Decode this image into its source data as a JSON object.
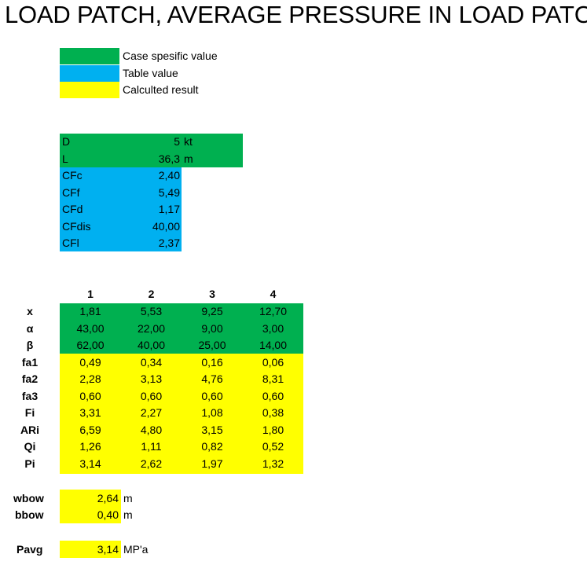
{
  "title": "LOAD PATCH, AVERAGE PRESSURE IN LOAD PATCH",
  "legend": [
    {
      "label": "Case spesific value",
      "color": "#00b050"
    },
    {
      "label": "Table value",
      "color": "#00b0f0"
    },
    {
      "label": "Calculted result",
      "color": "#ffff00"
    }
  ],
  "params": [
    {
      "name": "D",
      "value": "5",
      "unit": "kt",
      "color": "#00b050"
    },
    {
      "name": "L",
      "value": "36,3",
      "unit": "m",
      "color": "#00b050"
    },
    {
      "name": "CFc",
      "value": "2,40",
      "unit": "",
      "color": "#00b0f0"
    },
    {
      "name": "CFf",
      "value": "5,49",
      "unit": "",
      "color": "#00b0f0"
    },
    {
      "name": "CFd",
      "value": "1,17",
      "unit": "",
      "color": "#00b0f0"
    },
    {
      "name": "CFdis",
      "value": "40,00",
      "unit": "",
      "color": "#00b0f0"
    },
    {
      "name": "CFl",
      "value": "2,37",
      "unit": "",
      "color": "#00b0f0"
    }
  ],
  "table": {
    "columns": [
      "1",
      "2",
      "3",
      "4"
    ],
    "rows": [
      {
        "label": "x",
        "values": [
          "1,81",
          "5,53",
          "9,25",
          "12,70"
        ]
      },
      {
        "label": "α",
        "values": [
          "43,00",
          "22,00",
          "9,00",
          "3,00"
        ]
      },
      {
        "label": "β",
        "values": [
          "62,00",
          "40,00",
          "25,00",
          "14,00"
        ]
      },
      {
        "label": "fa1",
        "values": [
          "0,49",
          "0,34",
          "0,16",
          "0,06"
        ]
      },
      {
        "label": "fa2",
        "values": [
          "2,28",
          "3,13",
          "4,76",
          "8,31"
        ]
      },
      {
        "label": "fa3",
        "values": [
          "0,60",
          "0,60",
          "0,60",
          "0,60"
        ]
      },
      {
        "label": "Fi",
        "values": [
          "3,31",
          "2,27",
          "1,08",
          "0,38"
        ]
      },
      {
        "label": "ARi",
        "values": [
          "6,59",
          "4,80",
          "3,15",
          "1,80"
        ]
      },
      {
        "label": "Qi",
        "values": [
          "1,26",
          "1,11",
          "0,82",
          "0,52"
        ]
      },
      {
        "label": "Pi",
        "values": [
          "3,14",
          "2,62",
          "1,97",
          "1,32"
        ]
      }
    ]
  },
  "results": [
    {
      "label": "wbow",
      "value": "2,64",
      "unit": "m"
    },
    {
      "label": "bbow",
      "value": "0,40",
      "unit": "m"
    },
    {
      "label": "Pavg",
      "value": "3,14",
      "unit": "MP'a"
    }
  ]
}
